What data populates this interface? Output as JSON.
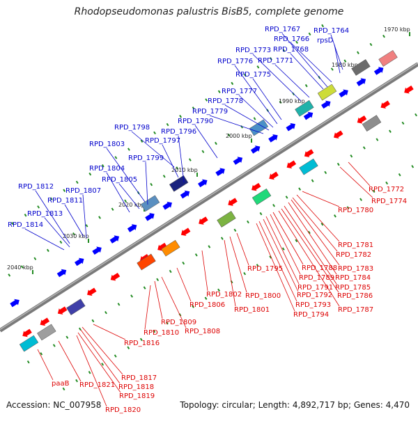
{
  "title": "Rhodopseudomonas palustris BisB5, complete genome",
  "footer": {
    "accession": "Accession: NC_007958",
    "topology": "Topology: circular; Length: 4,892,717 bp; Genes: 4,470"
  },
  "colors": {
    "top_labels": "#0000cc",
    "bottom_labels": "#dd0000",
    "forward_gene": "#0000ff",
    "reverse_gene": "#ff0000",
    "axis": "#888888",
    "tick": "#228b22"
  },
  "kbp_marks": [
    {
      "label": "1970 kbp"
    },
    {
      "label": "1980 kbp"
    },
    {
      "label": "1990 kbp"
    },
    {
      "label": "2000 kbp"
    },
    {
      "label": "2010 kbp"
    },
    {
      "label": "2020 kbp"
    },
    {
      "label": "2030 kbp"
    },
    {
      "label": "2040 kbp"
    }
  ],
  "top_labels": [
    "RPD_1764",
    "rpsD",
    "RPD_1766",
    "RPD_1767",
    "RPD_1768",
    "RPD_1773",
    "RPD_1771",
    "RPD_1776",
    "RPD_1775",
    "RPD_1777",
    "RPD_1778",
    "RPD_1779",
    "RPD_1790",
    "RPD_1798",
    "RPD_1796",
    "RPD_1797",
    "RPD_1803",
    "RPD_1799",
    "RPD_1804",
    "RPD_1805",
    "RPD_1812",
    "RPD_1811",
    "RPD_1807",
    "RPD_1813",
    "RPD_1814"
  ],
  "bottom_labels": [
    "RPD_1772",
    "RPD_1774",
    "RPD_1780",
    "RPD_1781",
    "RPD_1782",
    "RPD_1783",
    "RPD_1784",
    "RPD_1785",
    "RPD_1786",
    "RPD_1787",
    "RPD_1788",
    "RPD_1789",
    "RPD_1791",
    "RPD_1792",
    "RPD_1793",
    "RPD_1794",
    "RPD_1795",
    "RPD_1800",
    "RPD_1801",
    "RPD_1802",
    "RPD_1806",
    "RPD_1809",
    "RPD_1810",
    "RPD_1808",
    "RPD_1816",
    "RPD_1817",
    "RPD_1818",
    "RPD_1819",
    "RPD_1820",
    "RPD_1821",
    "paaB"
  ]
}
